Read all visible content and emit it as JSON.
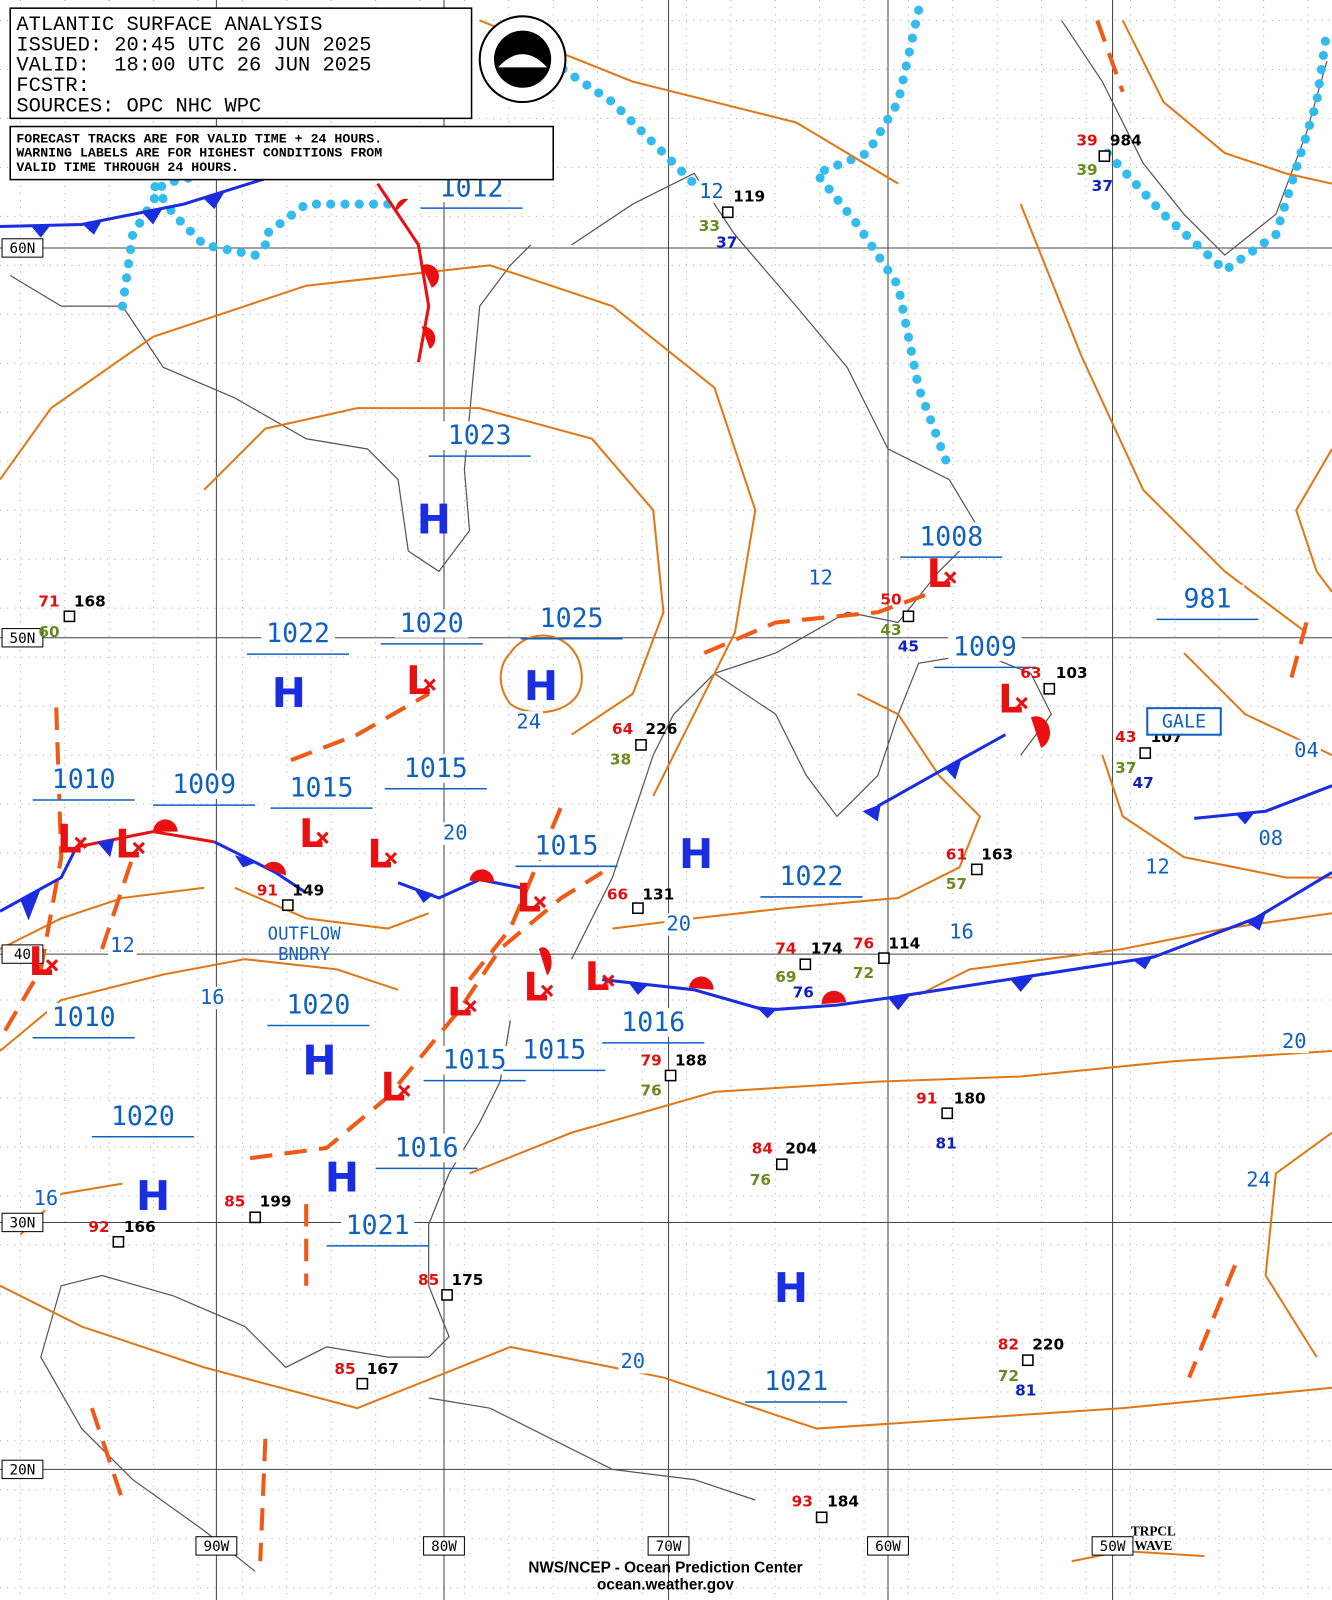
{
  "header": {
    "lines": [
      "ATLANTIC SURFACE ANALYSIS",
      "ISSUED: 20:45 UTC 26 JUN 2025",
      "VALID:  18:00 UTC 26 JUN 2025",
      "FCSTR:",
      "SOURCES: OPC NHC WPC"
    ]
  },
  "notice": {
    "lines": [
      "FORECAST TRACKS ARE FOR VALID TIME + 24 HOURS.",
      "WARNING LABELS ARE FOR HIGHEST CONDITIONS FROM",
      "VALID TIME THROUGH 24 HOURS."
    ]
  },
  "latitude_labels": [
    "60N",
    "50N",
    "40",
    "30N",
    "20N"
  ],
  "longitude_labels": [
    "90W",
    "80W",
    "70W",
    "60W",
    "50W"
  ],
  "pressure_labels": [
    "1012",
    "1023",
    "1008",
    "1009",
    "981",
    "1022",
    "1020",
    "1025",
    "1010",
    "1009",
    "1015",
    "1015",
    "1015",
    "1022",
    "1010",
    "1020",
    "1016",
    "1015",
    "1015",
    "1020",
    "1016",
    "1021",
    "1021"
  ],
  "isobar_labels": [
    "12",
    "12",
    "24",
    "20",
    "12",
    "16",
    "20",
    "16",
    "12",
    "08",
    "04",
    "20",
    "24",
    "16",
    "20"
  ],
  "highs": [
    "H",
    "H",
    "H",
    "H",
    "H",
    "H",
    "H",
    "H"
  ],
  "lows": [
    "L",
    "L",
    "L",
    "L",
    "L",
    "L",
    "L",
    "L",
    "L",
    "L",
    "L",
    "L",
    "L"
  ],
  "stations": [
    {
      "text": "71",
      "color": "#e01010"
    },
    {
      "text": "168",
      "color": "#000000"
    },
    {
      "text": "60",
      "color": "#6a8a20"
    },
    {
      "text": "119",
      "color": "#000000"
    },
    {
      "text": "33",
      "color": "#6a8a20"
    },
    {
      "text": "37",
      "color": "#1020c0"
    },
    {
      "text": "39",
      "color": "#e01010"
    },
    {
      "text": "984",
      "color": "#000000"
    },
    {
      "text": "39",
      "color": "#6a8a20"
    },
    {
      "text": "37",
      "color": "#1020c0"
    },
    {
      "text": "64",
      "color": "#e01010"
    },
    {
      "text": "226",
      "color": "#000000"
    },
    {
      "text": "38",
      "color": "#6a8a20"
    },
    {
      "text": "91",
      "color": "#e01010"
    },
    {
      "text": "149",
      "color": "#000000"
    },
    {
      "text": "66",
      "color": "#e01010"
    },
    {
      "text": "131",
      "color": "#000000"
    },
    {
      "text": "61",
      "color": "#e01010"
    },
    {
      "text": "163",
      "color": "#000000"
    },
    {
      "text": "57",
      "color": "#6a8a20"
    },
    {
      "text": "74",
      "color": "#e01010"
    },
    {
      "text": "174",
      "color": "#000000"
    },
    {
      "text": "69",
      "color": "#6a8a20"
    },
    {
      "text": "76",
      "color": "#1020c0"
    },
    {
      "text": "76",
      "color": "#e01010"
    },
    {
      "text": "114",
      "color": "#000000"
    },
    {
      "text": "72",
      "color": "#6a8a20"
    },
    {
      "text": "79",
      "color": "#e01010"
    },
    {
      "text": "188",
      "color": "#000000"
    },
    {
      "text": "76",
      "color": "#6a8a20"
    },
    {
      "text": "91",
      "color": "#e01010"
    },
    {
      "text": "180",
      "color": "#000000"
    },
    {
      "text": "81",
      "color": "#1020c0"
    },
    {
      "text": "84",
      "color": "#e01010"
    },
    {
      "text": "204",
      "color": "#000000"
    },
    {
      "text": "76",
      "color": "#6a8a20"
    },
    {
      "text": "82",
      "color": "#e01010"
    },
    {
      "text": "220",
      "color": "#000000"
    },
    {
      "text": "72",
      "color": "#6a8a20"
    },
    {
      "text": "81",
      "color": "#1020c0"
    },
    {
      "text": "85",
      "color": "#e01010"
    },
    {
      "text": "199",
      "color": "#000000"
    },
    {
      "text": "92",
      "color": "#e01010"
    },
    {
      "text": "166",
      "color": "#000000"
    },
    {
      "text": "85",
      "color": "#e01010"
    },
    {
      "text": "175",
      "color": "#000000"
    },
    {
      "text": "85",
      "color": "#e01010"
    },
    {
      "text": "167",
      "color": "#000000"
    },
    {
      "text": "93",
      "color": "#e01010"
    },
    {
      "text": "184",
      "color": "#000000"
    },
    {
      "text": "43",
      "color": "#e01010"
    },
    {
      "text": "107",
      "color": "#000000"
    },
    {
      "text": "37",
      "color": "#6a8a20"
    },
    {
      "text": "47",
      "color": "#1020c0"
    },
    {
      "text": "63",
      "color": "#e01010"
    },
    {
      "text": "103",
      "color": "#000000"
    },
    {
      "text": "50",
      "color": "#e01010"
    },
    {
      "text": "43",
      "color": "#6a8a20"
    },
    {
      "text": "45",
      "color": "#1020c0"
    }
  ],
  "annotations": {
    "outflow": [
      "OUTFLOW",
      "BNDRY"
    ],
    "gale": "GALE",
    "tropical_wave": [
      "TRPCL",
      "WAVE"
    ]
  },
  "footer": {
    "agency": "NWS/NCEP - Ocean Prediction Center",
    "website": "ocean.weather.gov"
  }
}
